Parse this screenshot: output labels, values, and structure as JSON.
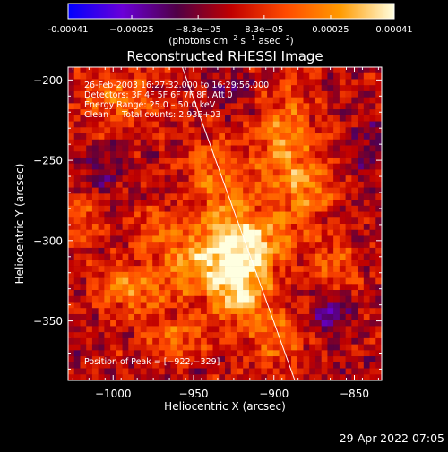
{
  "chart_data": {
    "type": "heatmap",
    "title": "Reconstructed RHESSI Image",
    "xlabel": "Heliocentric X (arcsec)",
    "ylabel": "Heliocentric Y (arcsec)",
    "xlim": [
      -1028,
      -833
    ],
    "ylim": [
      -387,
      -192
    ],
    "x_ticks": [
      -1000,
      -950,
      -900,
      -850
    ],
    "y_ticks": [
      -200,
      -250,
      -300,
      -350
    ],
    "x_tick_labels": [
      "−1000",
      "−950",
      "−900",
      "−850"
    ],
    "y_tick_labels": [
      "−200",
      "−250",
      "−300",
      "−350"
    ],
    "colorbar": {
      "min": -0.00041,
      "max": 0.00041,
      "tick_values": [
        -0.00041,
        -0.00025,
        -8.3e-05,
        8.3e-05,
        0.00025,
        0.00041
      ],
      "tick_labels": [
        "-0.00041",
        "−0.00025",
        "−8.3e−05",
        "8.3e−05",
        "0.00025",
        "0.00041"
      ],
      "label_prefix": "(photons cm",
      "label_sup1": "−2",
      "label_mid1": " s",
      "label_sup2": "−1",
      "label_mid2": " asec",
      "label_sup3": "−2",
      "label_suffix": ")",
      "colors": [
        "#0000ff",
        "#6a00d8",
        "#500046",
        "#c00000",
        "#ff4a00",
        "#ff9a00",
        "#ffffe0"
      ]
    },
    "annotations": {
      "time_range": "26-Feb-2003 16:27:32.000 to 16:29:56.000",
      "detectors": "Detectors: 3F 4F 5F 6F 7F 8F, Att 0",
      "energy": "Energy Range: 25.0 – 50.0 keV",
      "clean_counts": "Clean     Total counts: 2.93E+03",
      "peak_position": "Position of Peak = [−922,−329]"
    },
    "peak": {
      "x": -922,
      "y": -329
    },
    "limb_line": [
      [
        -957,
        -192
      ],
      [
        -887,
        -387
      ]
    ],
    "emission_sources": [
      {
        "x": -922,
        "y": -326,
        "amp": 1.25,
        "sx": 13,
        "sy": 16
      },
      {
        "x": -908,
        "y": -300,
        "amp": 0.75,
        "sx": 18,
        "sy": 12
      },
      {
        "x": -950,
        "y": -312,
        "amp": 0.7,
        "sx": 16,
        "sy": 14
      },
      {
        "x": -930,
        "y": -282,
        "amp": 0.55,
        "sx": 14,
        "sy": 18
      },
      {
        "x": -893,
        "y": -240,
        "amp": 0.7,
        "sx": 14,
        "sy": 24
      },
      {
        "x": -878,
        "y": -268,
        "amp": 0.55,
        "sx": 12,
        "sy": 12
      },
      {
        "x": -988,
        "y": -330,
        "amp": 0.7,
        "sx": 16,
        "sy": 10
      },
      {
        "x": -960,
        "y": -360,
        "amp": 0.5,
        "sx": 14,
        "sy": 10
      },
      {
        "x": -998,
        "y": -212,
        "amp": 0.55,
        "sx": 18,
        "sy": 12
      },
      {
        "x": -940,
        "y": -250,
        "amp": 0.45,
        "sx": 12,
        "sy": 12
      },
      {
        "x": -898,
        "y": -360,
        "amp": 0.55,
        "sx": 12,
        "sy": 14
      },
      {
        "x": -862,
        "y": -316,
        "amp": 0.45,
        "sx": 10,
        "sy": 12
      },
      {
        "x": -1018,
        "y": -282,
        "amp": 0.45,
        "sx": 10,
        "sy": 14
      },
      {
        "x": -975,
        "y": -292,
        "amp": 0.4,
        "sx": 10,
        "sy": 10
      },
      {
        "x": -1010,
        "y": -258,
        "amp": -0.45,
        "sx": 10,
        "sy": 10
      },
      {
        "x": -867,
        "y": -345,
        "amp": -0.5,
        "sx": 10,
        "sy": 10
      },
      {
        "x": -925,
        "y": -207,
        "amp": -0.35,
        "sx": 12,
        "sy": 8
      },
      {
        "x": -841,
        "y": -240,
        "amp": -0.3,
        "sx": 10,
        "sy": 12
      }
    ]
  },
  "footer": {
    "date": "29-Apr-2022 07:05"
  }
}
